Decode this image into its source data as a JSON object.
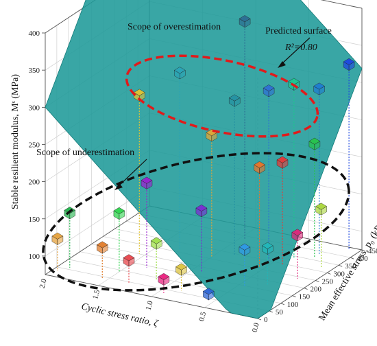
{
  "chart_data": {
    "type": "scatter",
    "subtype": "3d-scatter-with-fitted-surface",
    "xlabel": "Cyclic stress ratio, ζ",
    "ylabel": "Mean effective stress, p₀ (kPa)",
    "zlabel": "Stable resilient modulus, Mˢ (MPa)",
    "xlim": [
      0.0,
      2.0
    ],
    "ylim": [
      0,
      450
    ],
    "zlim": [
      75,
      400
    ],
    "xticks": [
      "0.0",
      "0.5",
      "1.0",
      "1.5",
      "2.0"
    ],
    "yticks": [
      "0",
      "50",
      "100",
      "150",
      "200",
      "250",
      "300",
      "350",
      "400",
      "450"
    ],
    "zticks": [
      "100",
      "150",
      "200",
      "250",
      "300",
      "350",
      "400"
    ],
    "grid": true,
    "surface": {
      "name": "Predicted surface",
      "r2_label": "R²=0.80",
      "color": "#1e9a98"
    },
    "annotations": {
      "overestimation": "Scope of overestimation",
      "underestimation": "Scope of underestimation",
      "surface_label": "Predicted surface",
      "r2": "R²=0.80"
    },
    "points": [
      {
        "x": 1.95,
        "y": 30,
        "z": 120,
        "color": "#e6a13c"
      },
      {
        "x": 1.9,
        "y": 60,
        "z": 150,
        "color": "#1fb24a"
      },
      {
        "x": 1.55,
        "y": 40,
        "z": 118,
        "color": "#e07b29"
      },
      {
        "x": 1.5,
        "y": 90,
        "z": 155,
        "color": "#2bd44b"
      },
      {
        "x": 1.35,
        "y": 140,
        "z": 190,
        "color": "#9b1fd1"
      },
      {
        "x": 1.3,
        "y": 40,
        "z": 108,
        "color": "#e8454b"
      },
      {
        "x": 1.15,
        "y": 90,
        "z": 125,
        "color": "#9fe04a"
      },
      {
        "x": 0.95,
        "y": 30,
        "z": 95,
        "color": "#ea1f7d"
      },
      {
        "x": 0.85,
        "y": 60,
        "z": 105,
        "color": "#dcc33f"
      },
      {
        "x": 0.55,
        "y": 40,
        "z": 85,
        "color": "#2a63d6"
      },
      {
        "x": 0.9,
        "y": 170,
        "z": 160,
        "color": "#7a2cd3"
      },
      {
        "x": 0.45,
        "y": 150,
        "z": 125,
        "color": "#2f98e6"
      },
      {
        "x": 0.3,
        "y": 180,
        "z": 125,
        "color": "#22b6b8"
      },
      {
        "x": 0.15,
        "y": 240,
        "z": 135,
        "color": "#e0257a"
      },
      {
        "x": 0.1,
        "y": 320,
        "z": 155,
        "color": "#a9d638"
      },
      {
        "x": 1.55,
        "y": 200,
        "z": 290,
        "color": "#e3c432"
      },
      {
        "x": 1.0,
        "y": 260,
        "z": 240,
        "color": "#e4a735"
      },
      {
        "x": 0.55,
        "y": 260,
        "z": 210,
        "color": "#ec7428"
      },
      {
        "x": 0.4,
        "y": 290,
        "z": 215,
        "color": "#e63838"
      },
      {
        "x": 0.25,
        "y": 360,
        "z": 230,
        "color": "#27c34a"
      },
      {
        "x": 1.3,
        "y": 260,
        "z": 315,
        "color": "#2aa3b6"
      },
      {
        "x": 0.85,
        "y": 290,
        "z": 285,
        "color": "#2591a2"
      },
      {
        "x": 0.55,
        "y": 300,
        "z": 305,
        "color": "#2e6fd4"
      },
      {
        "x": 0.4,
        "y": 340,
        "z": 310,
        "color": "#1dc68f"
      },
      {
        "x": 0.25,
        "y": 380,
        "z": 300,
        "color": "#1e7bd1"
      },
      {
        "x": 0.95,
        "y": 380,
        "z": 370,
        "color": "#2c6d92"
      },
      {
        "x": 0.1,
        "y": 440,
        "z": 325,
        "color": "#1d46e0"
      }
    ]
  }
}
